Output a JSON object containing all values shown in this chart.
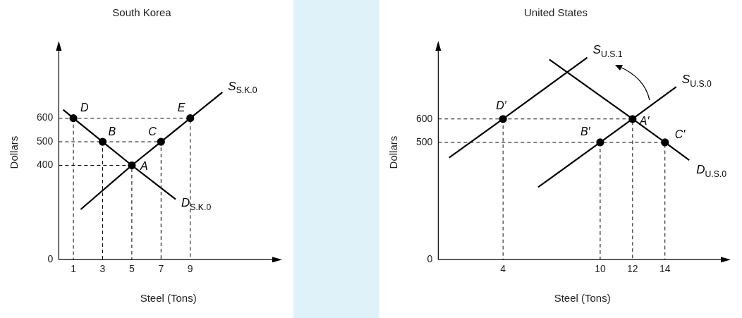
{
  "chart_data": [
    {
      "type": "line",
      "title": "South Korea",
      "xlabel": "Steel (Tons)",
      "ylabel": "Dollars",
      "xlim": [
        0,
        15
      ],
      "ylim": [
        0,
        910
      ],
      "xticks": [
        1,
        3,
        5,
        7,
        9
      ],
      "yticks": [
        0,
        400,
        500,
        600
      ],
      "grid": false,
      "legend": false,
      "series": [
        {
          "name": "S$_{S.K.0}$",
          "color": "#000000",
          "marker": "none",
          "x": [
            1.5,
            5,
            7,
            9,
            11.2
          ],
          "values": [
            213,
            400,
            500,
            600,
            710
          ]
        },
        {
          "name": "D$_{S.K.0}$",
          "color": "#000000",
          "marker": "none",
          "x": [
            0.3,
            1,
            3,
            5,
            8
          ],
          "values": [
            636,
            600,
            500,
            400,
            256
          ]
        },
        {
          "color": "#000000",
          "marker": "none",
          "line_style": "dashed",
          "x": [
            0,
            9,
            9
          ],
          "values": [
            600,
            600,
            0
          ]
        },
        {
          "color": "#000000",
          "marker": "none",
          "line_style": "dashed",
          "x": [
            0,
            7,
            7
          ],
          "values": [
            500,
            500,
            0
          ]
        },
        {
          "color": "#000000",
          "marker": "none",
          "line_style": "dashed",
          "x": [
            0,
            5,
            5
          ],
          "values": [
            400,
            400,
            0
          ]
        },
        {
          "color": "#000000",
          "marker": "none",
          "line_style": "dashed",
          "x": [
            1,
            1
          ],
          "values": [
            600,
            0
          ]
        },
        {
          "color": "#000000",
          "marker": "none",
          "line_style": "dashed",
          "x": [
            3,
            3
          ],
          "values": [
            500,
            0
          ]
        },
        {
          "type": "scatter",
          "color": "#000000",
          "marker": "circle",
          "x": [
            1,
            3,
            5,
            7,
            9
          ],
          "values": [
            600,
            500,
            400,
            500,
            600
          ]
        }
      ],
      "annotations": [
        {
          "text": "D",
          "x": 1,
          "y": 600
        },
        {
          "text": "B",
          "x": 3,
          "y": 500
        },
        {
          "text": "A",
          "x": 5,
          "y": 400
        },
        {
          "text": "C",
          "x": 7,
          "y": 500
        },
        {
          "text": "E",
          "x": 9,
          "y": 600
        }
      ]
    },
    {
      "type": "line",
      "title": "United States",
      "xlabel": "Steel (Tons)",
      "ylabel": "Dollars",
      "xlim": [
        0,
        17.8
      ],
      "ylim": [
        0,
        915
      ],
      "xticks": [
        4,
        10,
        12,
        14
      ],
      "yticks": [
        0,
        500,
        600
      ],
      "grid": false,
      "legend": false,
      "series": [
        {
          "name": "S$_{U.S.1}$",
          "color": "#000000",
          "marker": "none",
          "x": [
            0.67,
            4,
            9.2
          ],
          "values": [
            435,
            600,
            862
          ]
        },
        {
          "name": "S$_{U.S.0}$",
          "color": "#000000",
          "marker": "none",
          "x": [
            6.17,
            10,
            12,
            14.7
          ],
          "values": [
            309,
            500,
            600,
            737
          ]
        },
        {
          "name": "D$_{U.S.0}$",
          "color": "#000000",
          "marker": "none",
          "x": [
            6.86,
            12,
            14,
            15.5
          ],
          "values": [
            854,
            600,
            500,
            424
          ]
        },
        {
          "color": "#000000",
          "marker": "none",
          "line_style": "dashed",
          "x": [
            0,
            12,
            12
          ],
          "values": [
            600,
            600,
            0
          ]
        },
        {
          "color": "#000000",
          "marker": "none",
          "line_style": "dashed",
          "x": [
            0,
            14,
            14
          ],
          "values": [
            500,
            500,
            0
          ]
        },
        {
          "color": "#000000",
          "marker": "none",
          "line_style": "dashed",
          "x": [
            4,
            4
          ],
          "values": [
            600,
            0
          ]
        },
        {
          "color": "#000000",
          "marker": "none",
          "line_style": "dashed",
          "x": [
            10,
            10
          ],
          "values": [
            500,
            0
          ]
        },
        {
          "type": "scatter",
          "color": "#000000",
          "marker": "circle",
          "x": [
            4,
            12,
            10,
            14
          ],
          "values": [
            600,
            600,
            500,
            500
          ]
        }
      ],
      "annotations": [
        {
          "text": "D′",
          "x": 4,
          "y": 600
        },
        {
          "text": "A′",
          "x": 12,
          "y": 600
        },
        {
          "text": "B′",
          "x": 10,
          "y": 500
        },
        {
          "text": "C′",
          "x": 14,
          "y": 500
        }
      ]
    }
  ]
}
